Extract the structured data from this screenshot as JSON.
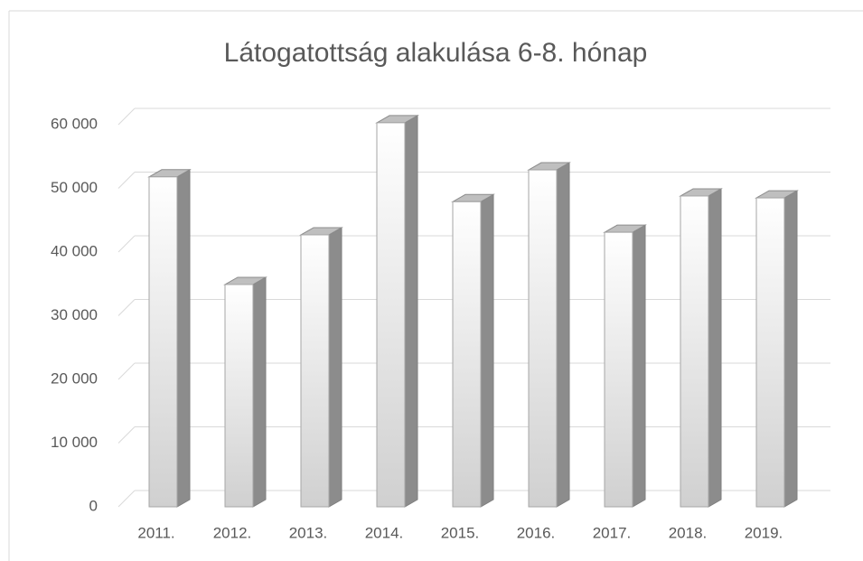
{
  "chart_data": {
    "type": "bar3d",
    "title": "Látogatottság alakulása 6-8. hónap",
    "categories": [
      "2011.",
      "2012.",
      "2013.",
      "2014.",
      "2015.",
      "2016.",
      "2017.",
      "2018.",
      "2019."
    ],
    "values": [
      51800,
      34900,
      42700,
      60300,
      47900,
      52900,
      43100,
      48800,
      48500
    ],
    "color": "#d9d9d9",
    "ylim": [
      0,
      60000
    ],
    "yticks": [
      0,
      {
        "value": 10000,
        "label": "10 000"
      },
      {
        "value": 20000,
        "label": "20 000"
      },
      {
        "value": 30000,
        "label": "30 000"
      },
      {
        "value": 40000,
        "label": "40 000"
      },
      {
        "value": 50000,
        "label": "50 000"
      },
      {
        "value": 60000,
        "label": "60 000"
      }
    ],
    "grid": true
  }
}
